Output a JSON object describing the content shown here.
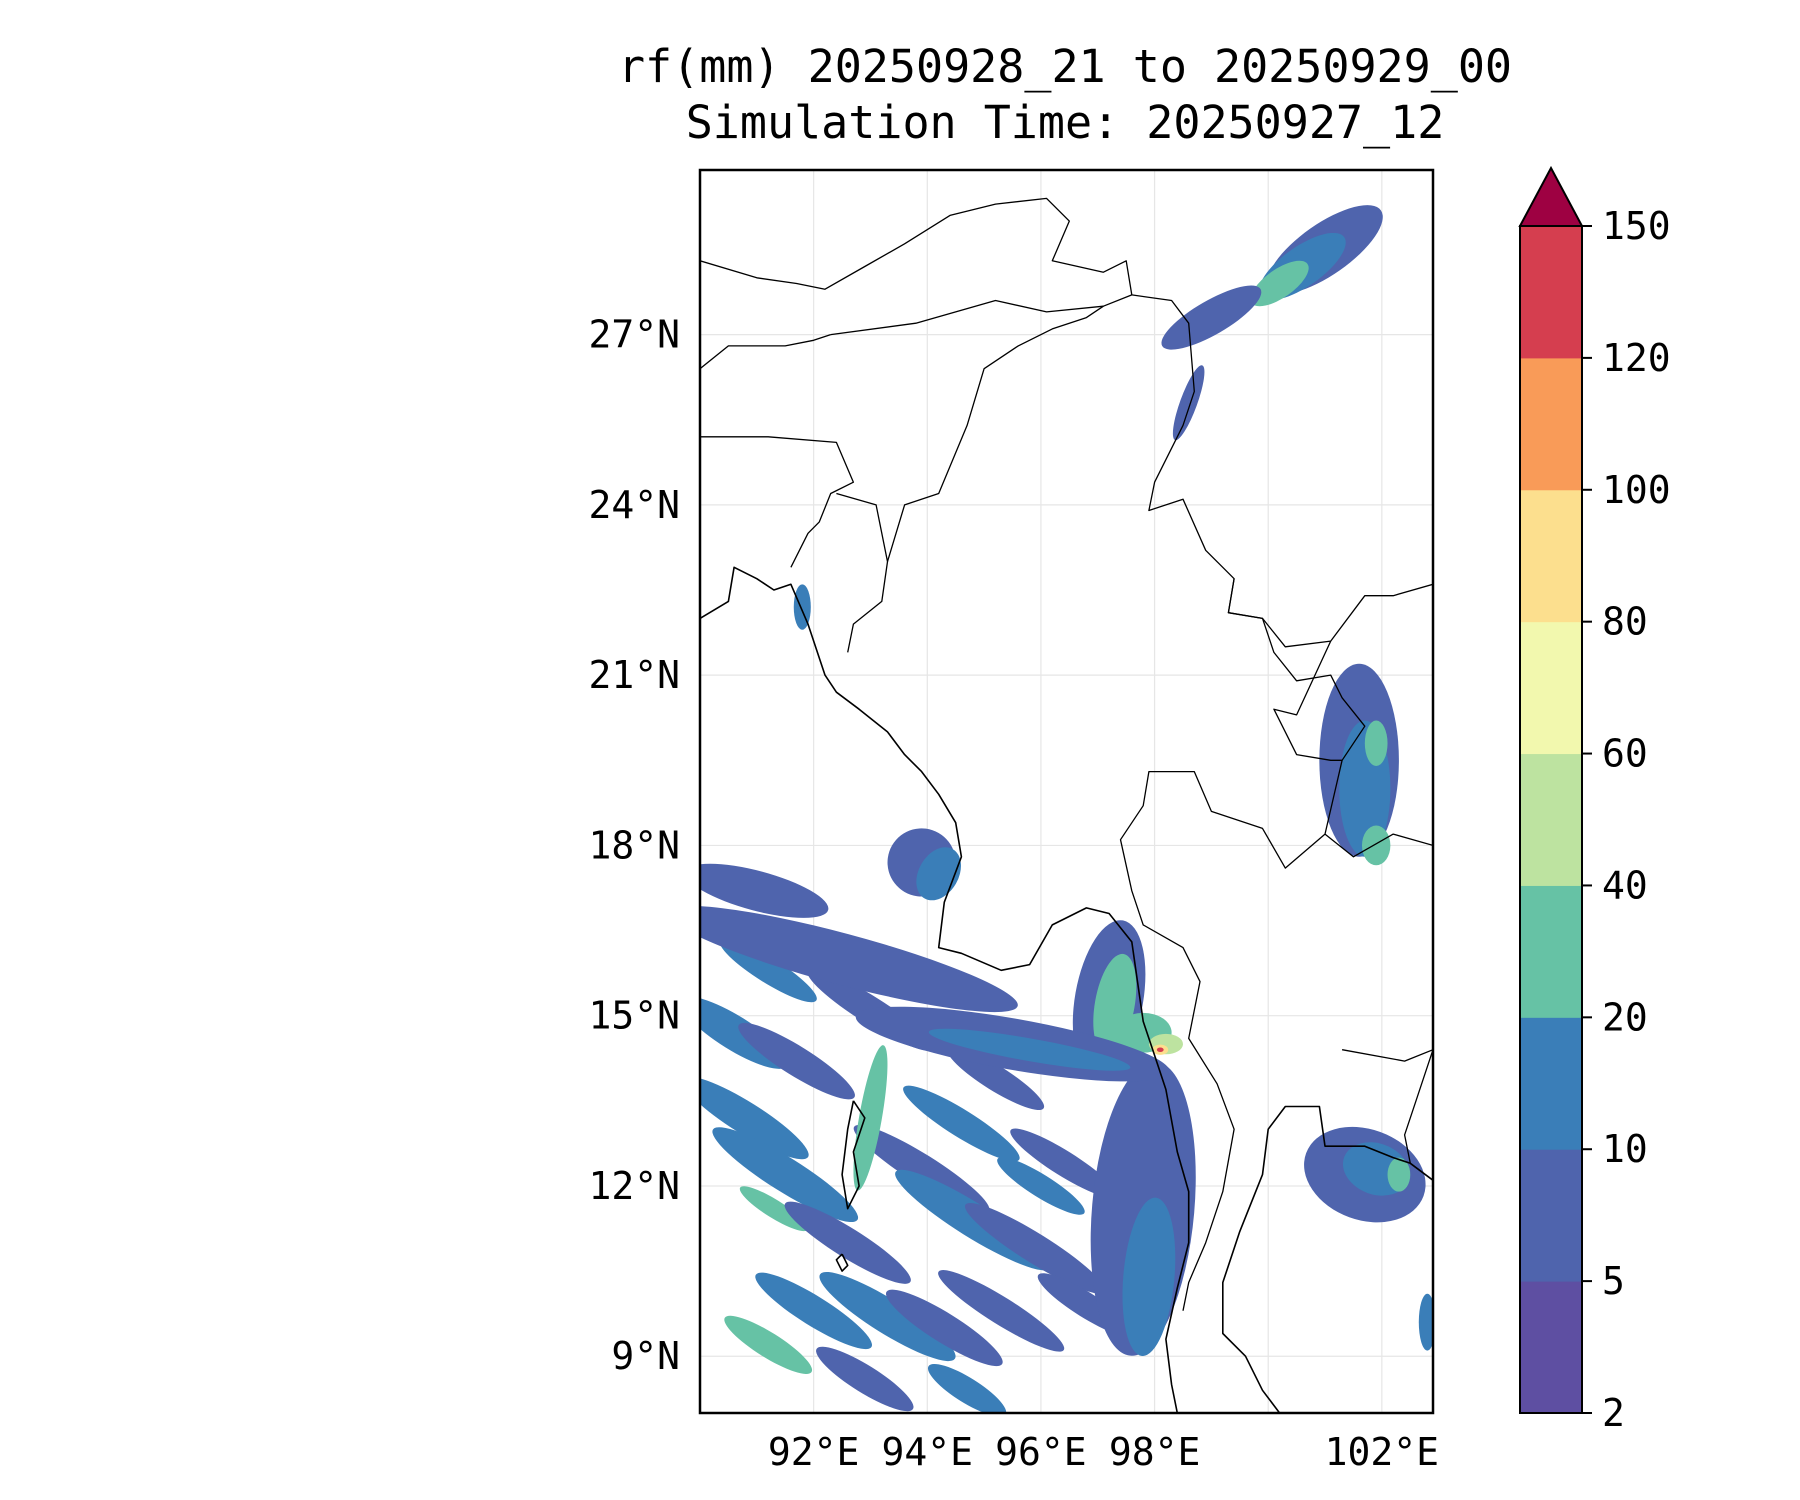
{
  "title_line1": "rf(mm) 20250928_21 to 20250929_00",
  "title_line2": "Simulation Time: 20250927_12",
  "map": {
    "lon_range": [
      90.0,
      102.9
    ],
    "lat_range": [
      8.0,
      29.9
    ],
    "lat_ticks": [
      {
        "value": 27,
        "label": "27°N"
      },
      {
        "value": 24,
        "label": "24°N"
      },
      {
        "value": 21,
        "label": "21°N"
      },
      {
        "value": 18,
        "label": "18°N"
      },
      {
        "value": 15,
        "label": "15°N"
      },
      {
        "value": 12,
        "label": "12°N"
      },
      {
        "value": 9,
        "label": "9°N"
      }
    ],
    "lon_ticks": [
      {
        "value": 92,
        "label": "92°E"
      },
      {
        "value": 94,
        "label": "94°E"
      },
      {
        "value": 96,
        "label": "96°E"
      },
      {
        "value": 98,
        "label": "98°E"
      },
      {
        "value": 102,
        "label": "102°E"
      }
    ],
    "rain_cells": [
      {
        "lon": 101.0,
        "lat": 28.5,
        "rx": 1.2,
        "ry": 0.45,
        "rot": -35,
        "level": 1
      },
      {
        "lon": 100.6,
        "lat": 28.2,
        "rx": 0.9,
        "ry": 0.35,
        "rot": -35,
        "level": 2
      },
      {
        "lon": 100.2,
        "lat": 27.9,
        "rx": 0.6,
        "ry": 0.25,
        "rot": -35,
        "level": 3
      },
      {
        "lon": 99.0,
        "lat": 27.3,
        "rx": 1.0,
        "ry": 0.3,
        "rot": -30,
        "level": 1
      },
      {
        "lon": 98.6,
        "lat": 25.8,
        "rx": 0.15,
        "ry": 0.7,
        "rot": 20,
        "level": 1
      },
      {
        "lon": 91.8,
        "lat": 22.2,
        "rx": 0.15,
        "ry": 0.4,
        "rot": 0,
        "level": 2
      },
      {
        "lon": 93.9,
        "lat": 17.7,
        "rx": 0.6,
        "ry": 0.6,
        "rot": 30,
        "level": 1
      },
      {
        "lon": 94.2,
        "lat": 17.5,
        "rx": 0.35,
        "ry": 0.5,
        "rot": 30,
        "level": 2
      },
      {
        "lon": 101.6,
        "lat": 19.5,
        "rx": 0.7,
        "ry": 1.7,
        "rot": 0,
        "level": 1
      },
      {
        "lon": 101.7,
        "lat": 19.0,
        "rx": 0.45,
        "ry": 1.2,
        "rot": 0,
        "level": 2
      },
      {
        "lon": 101.9,
        "lat": 19.8,
        "rx": 0.2,
        "ry": 0.4,
        "rot": 0,
        "level": 3
      },
      {
        "lon": 101.9,
        "lat": 18.0,
        "rx": 0.25,
        "ry": 0.35,
        "rot": 0,
        "level": 3
      },
      {
        "lon": 101.7,
        "lat": 12.2,
        "rx": 1.1,
        "ry": 0.8,
        "rot": 20,
        "level": 1
      },
      {
        "lon": 101.9,
        "lat": 12.3,
        "rx": 0.6,
        "ry": 0.45,
        "rot": 20,
        "level": 2
      },
      {
        "lon": 102.3,
        "lat": 12.2,
        "rx": 0.2,
        "ry": 0.3,
        "rot": 0,
        "level": 3
      },
      {
        "lon": 102.8,
        "lat": 9.6,
        "rx": 0.15,
        "ry": 0.5,
        "rot": 0,
        "level": 2
      },
      {
        "lon": 97.2,
        "lat": 15.3,
        "rx": 0.6,
        "ry": 1.4,
        "rot": 10,
        "level": 1
      },
      {
        "lon": 97.3,
        "lat": 15.2,
        "rx": 0.35,
        "ry": 0.9,
        "rot": 10,
        "level": 3
      },
      {
        "lon": 97.8,
        "lat": 14.7,
        "rx": 0.5,
        "ry": 0.35,
        "rot": 0,
        "level": 3
      },
      {
        "lon": 98.2,
        "lat": 14.5,
        "rx": 0.3,
        "ry": 0.18,
        "rot": 0,
        "level": 4
      },
      {
        "lon": 98.1,
        "lat": 14.4,
        "rx": 0.14,
        "ry": 0.09,
        "rot": 0,
        "level": 6
      },
      {
        "lon": 98.1,
        "lat": 14.4,
        "rx": 0.06,
        "ry": 0.04,
        "rot": 0,
        "level": 8
      },
      {
        "lon": 97.8,
        "lat": 11.6,
        "rx": 0.9,
        "ry": 2.6,
        "rot": 5,
        "level": 1
      },
      {
        "lon": 97.9,
        "lat": 10.4,
        "rx": 0.45,
        "ry": 1.4,
        "rot": 5,
        "level": 2
      },
      {
        "lon": 95.5,
        "lat": 14.5,
        "rx": 2.8,
        "ry": 0.45,
        "rot": 10,
        "level": 1
      },
      {
        "lon": 95.8,
        "lat": 14.4,
        "rx": 1.8,
        "ry": 0.2,
        "rot": 10,
        "level": 2
      },
      {
        "lon": 92.5,
        "lat": 16.0,
        "rx": 3.2,
        "ry": 0.45,
        "rot": 15,
        "level": 1
      },
      {
        "lon": 91.0,
        "lat": 17.2,
        "rx": 1.3,
        "ry": 0.35,
        "rot": 15,
        "level": 1
      },
      {
        "lon": 93.0,
        "lat": 13.2,
        "rx": 0.2,
        "ry": 1.3,
        "rot": 10,
        "level": 3
      }
    ],
    "rain_bands": [
      {
        "lon": 90.8,
        "lat": 13.2,
        "len": 2.6,
        "w": 0.28,
        "level": 2
      },
      {
        "lon": 91.5,
        "lat": 12.2,
        "len": 3.0,
        "w": 0.3,
        "level": 2
      },
      {
        "lon": 91.3,
        "lat": 11.6,
        "len": 1.4,
        "w": 0.16,
        "level": 3
      },
      {
        "lon": 92.6,
        "lat": 11.0,
        "len": 2.6,
        "w": 0.26,
        "level": 1
      },
      {
        "lon": 93.9,
        "lat": 12.3,
        "len": 2.8,
        "w": 0.26,
        "level": 1
      },
      {
        "lon": 94.8,
        "lat": 11.4,
        "len": 3.2,
        "w": 0.3,
        "level": 2
      },
      {
        "lon": 95.9,
        "lat": 10.9,
        "len": 2.9,
        "w": 0.26,
        "level": 1
      },
      {
        "lon": 93.3,
        "lat": 9.7,
        "len": 2.8,
        "w": 0.3,
        "level": 2
      },
      {
        "lon": 92.0,
        "lat": 9.8,
        "len": 2.4,
        "w": 0.26,
        "level": 2
      },
      {
        "lon": 94.3,
        "lat": 9.5,
        "len": 2.4,
        "w": 0.26,
        "level": 1
      },
      {
        "lon": 95.3,
        "lat": 9.8,
        "len": 2.6,
        "w": 0.24,
        "level": 1
      },
      {
        "lon": 91.2,
        "lat": 9.2,
        "len": 1.8,
        "w": 0.22,
        "level": 3
      },
      {
        "lon": 96.8,
        "lat": 9.9,
        "len": 2.0,
        "w": 0.22,
        "level": 1
      },
      {
        "lon": 90.6,
        "lat": 14.7,
        "len": 2.2,
        "w": 0.3,
        "level": 2
      },
      {
        "lon": 91.7,
        "lat": 14.2,
        "len": 2.4,
        "w": 0.26,
        "level": 1
      },
      {
        "lon": 94.6,
        "lat": 13.1,
        "len": 2.4,
        "w": 0.24,
        "level": 2
      },
      {
        "lon": 96.4,
        "lat": 12.4,
        "len": 2.2,
        "w": 0.22,
        "level": 1
      },
      {
        "lon": 92.9,
        "lat": 8.6,
        "len": 2.0,
        "w": 0.24,
        "level": 1
      },
      {
        "lon": 94.7,
        "lat": 8.4,
        "len": 1.6,
        "w": 0.22,
        "level": 2
      },
      {
        "lon": 96.0,
        "lat": 12.0,
        "len": 1.8,
        "w": 0.2,
        "level": 2
      },
      {
        "lon": 95.2,
        "lat": 13.9,
        "len": 2.0,
        "w": 0.22,
        "level": 1
      },
      {
        "lon": 93.0,
        "lat": 15.1,
        "len": 2.6,
        "w": 0.24,
        "level": 1
      },
      {
        "lon": 91.2,
        "lat": 15.8,
        "len": 2.0,
        "w": 0.22,
        "level": 2
      }
    ],
    "coastlines": [
      [
        [
          90.0,
          22.0
        ],
        [
          90.5,
          22.3
        ],
        [
          90.6,
          22.9
        ],
        [
          91.0,
          22.7
        ],
        [
          91.3,
          22.5
        ],
        [
          91.6,
          22.6
        ],
        [
          91.9,
          21.9
        ],
        [
          92.2,
          21.0
        ],
        [
          92.4,
          20.7
        ],
        [
          92.8,
          20.4
        ],
        [
          93.3,
          20.0
        ],
        [
          93.6,
          19.6
        ],
        [
          93.9,
          19.3
        ],
        [
          94.2,
          18.9
        ],
        [
          94.5,
          18.4
        ],
        [
          94.6,
          17.8
        ],
        [
          94.3,
          17.0
        ],
        [
          94.2,
          16.2
        ],
        [
          94.6,
          16.1
        ],
        [
          95.3,
          15.8
        ],
        [
          95.8,
          15.9
        ],
        [
          96.2,
          16.6
        ],
        [
          96.8,
          16.9
        ],
        [
          97.2,
          16.8
        ],
        [
          97.6,
          16.3
        ],
        [
          97.7,
          15.6
        ],
        [
          97.8,
          14.9
        ],
        [
          98.0,
          14.3
        ],
        [
          98.2,
          13.7
        ],
        [
          98.4,
          12.6
        ],
        [
          98.6,
          11.9
        ],
        [
          98.6,
          11.0
        ],
        [
          98.4,
          10.2
        ],
        [
          98.2,
          9.3
        ],
        [
          98.3,
          8.5
        ],
        [
          98.4,
          8.0
        ]
      ],
      [
        [
          102.9,
          12.1
        ],
        [
          102.5,
          12.4
        ],
        [
          102.2,
          12.5
        ],
        [
          101.7,
          12.7
        ],
        [
          101.0,
          12.7
        ],
        [
          100.9,
          13.4
        ],
        [
          100.3,
          13.4
        ],
        [
          100.0,
          13.0
        ],
        [
          99.9,
          12.2
        ],
        [
          99.5,
          11.2
        ],
        [
          99.2,
          10.3
        ],
        [
          99.2,
          9.4
        ],
        [
          99.6,
          9.0
        ],
        [
          99.9,
          8.4
        ],
        [
          100.2,
          8.0
        ]
      ],
      [
        [
          92.7,
          13.5
        ],
        [
          92.9,
          13.2
        ],
        [
          92.7,
          12.6
        ],
        [
          92.8,
          12.0
        ],
        [
          92.6,
          11.6
        ],
        [
          92.5,
          12.2
        ],
        [
          92.6,
          13.0
        ],
        [
          92.7,
          13.5
        ]
      ],
      [
        [
          92.5,
          10.8
        ],
        [
          92.6,
          10.6
        ],
        [
          92.5,
          10.5
        ],
        [
          92.4,
          10.7
        ],
        [
          92.5,
          10.8
        ]
      ]
    ],
    "borders": [
      [
        [
          90.0,
          28.3
        ],
        [
          91.0,
          28.0
        ],
        [
          91.7,
          27.9
        ],
        [
          92.2,
          27.8
        ],
        [
          92.9,
          28.2
        ],
        [
          93.6,
          28.6
        ],
        [
          94.4,
          29.1
        ],
        [
          95.2,
          29.3
        ],
        [
          96.1,
          29.4
        ],
        [
          96.5,
          29.0
        ],
        [
          96.2,
          28.3
        ],
        [
          97.1,
          28.1
        ],
        [
          97.5,
          28.3
        ],
        [
          97.6,
          27.7
        ],
        [
          98.3,
          27.6
        ],
        [
          98.6,
          27.2
        ],
        [
          98.7,
          26.0
        ],
        [
          98.5,
          25.4
        ],
        [
          98.0,
          24.4
        ],
        [
          97.9,
          23.9
        ],
        [
          98.5,
          24.1
        ],
        [
          98.9,
          23.2
        ],
        [
          99.4,
          22.7
        ],
        [
          99.3,
          22.1
        ],
        [
          99.9,
          22.0
        ],
        [
          100.3,
          21.5
        ],
        [
          101.1,
          21.6
        ],
        [
          101.7,
          22.4
        ],
        [
          102.2,
          22.4
        ],
        [
          102.9,
          22.6
        ]
      ],
      [
        [
          92.3,
          27.0
        ],
        [
          93.8,
          27.2
        ],
        [
          95.2,
          27.6
        ],
        [
          96.1,
          27.4
        ],
        [
          97.1,
          27.5
        ],
        [
          97.6,
          27.7
        ]
      ],
      [
        [
          90.0,
          26.4
        ],
        [
          90.5,
          26.8
        ],
        [
          91.5,
          26.8
        ],
        [
          92.0,
          26.9
        ],
        [
          92.3,
          27.0
        ]
      ],
      [
        [
          90.0,
          25.2
        ],
        [
          91.2,
          25.2
        ],
        [
          92.4,
          25.1
        ],
        [
          92.7,
          24.4
        ],
        [
          92.3,
          24.2
        ],
        [
          92.1,
          23.7
        ],
        [
          91.9,
          23.5
        ],
        [
          91.6,
          22.9
        ]
      ],
      [
        [
          92.4,
          24.2
        ],
        [
          93.1,
          24.0
        ],
        [
          93.3,
          23.0
        ],
        [
          93.2,
          22.3
        ],
        [
          92.7,
          21.9
        ],
        [
          92.6,
          21.4
        ]
      ],
      [
        [
          93.3,
          23.0
        ],
        [
          93.6,
          24.0
        ],
        [
          94.2,
          24.2
        ],
        [
          94.7,
          25.4
        ],
        [
          95.0,
          26.4
        ],
        [
          95.6,
          26.8
        ],
        [
          96.2,
          27.1
        ],
        [
          96.8,
          27.3
        ],
        [
          97.1,
          27.5
        ]
      ],
      [
        [
          99.4,
          22.7
        ],
        [
          99.3,
          22.1
        ],
        [
          99.9,
          22.0
        ],
        [
          100.1,
          21.4
        ],
        [
          100.5,
          20.9
        ],
        [
          101.1,
          21.0
        ],
        [
          101.3,
          20.6
        ],
        [
          101.7,
          20.1
        ],
        [
          101.3,
          19.5
        ],
        [
          101.0,
          18.2
        ],
        [
          100.3,
          17.6
        ],
        [
          99.9,
          18.3
        ],
        [
          99.0,
          18.6
        ],
        [
          98.7,
          19.3
        ],
        [
          97.9,
          19.3
        ],
        [
          97.8,
          18.7
        ],
        [
          97.4,
          18.1
        ],
        [
          97.6,
          17.2
        ],
        [
          97.8,
          16.6
        ],
        [
          98.5,
          16.2
        ],
        [
          98.8,
          15.6
        ],
        [
          98.6,
          14.6
        ],
        [
          99.1,
          13.8
        ],
        [
          99.4,
          13.0
        ],
        [
          99.2,
          11.9
        ],
        [
          98.9,
          11.0
        ],
        [
          98.6,
          10.3
        ],
        [
          98.5,
          9.8
        ]
      ],
      [
        [
          101.1,
          21.6
        ],
        [
          100.5,
          20.3
        ],
        [
          100.1,
          20.4
        ],
        [
          100.5,
          19.6
        ],
        [
          101.1,
          19.5
        ],
        [
          101.3,
          19.5
        ]
      ],
      [
        [
          101.0,
          18.2
        ],
        [
          101.5,
          17.8
        ],
        [
          102.2,
          18.2
        ],
        [
          102.9,
          18.0
        ]
      ],
      [
        [
          102.9,
          14.4
        ],
        [
          102.6,
          13.5
        ],
        [
          102.4,
          12.9
        ],
        [
          102.5,
          12.4
        ]
      ],
      [
        [
          101.3,
          14.4
        ],
        [
          102.4,
          14.2
        ],
        [
          102.9,
          14.4
        ]
      ]
    ]
  },
  "colorbar": {
    "label_max": "150",
    "levels": [
      {
        "value": 2,
        "label": "2",
        "color": "#5e4fa2"
      },
      {
        "value": 5,
        "label": "5",
        "color": "#4f64ad"
      },
      {
        "value": 10,
        "label": "10",
        "color": "#3a7eb8"
      },
      {
        "value": 20,
        "label": "20",
        "color": "#66c2a5"
      },
      {
        "value": 40,
        "label": "40",
        "color": "#bde3a0"
      },
      {
        "value": 60,
        "label": "60",
        "color": "#f2f8ae"
      },
      {
        "value": 80,
        "label": "80",
        "color": "#fcdf8e"
      },
      {
        "value": 100,
        "label": "100",
        "color": "#f99b58"
      },
      {
        "value": 120,
        "label": "120",
        "color": "#d53e4f"
      }
    ],
    "extend_color": "#9e0142"
  }
}
